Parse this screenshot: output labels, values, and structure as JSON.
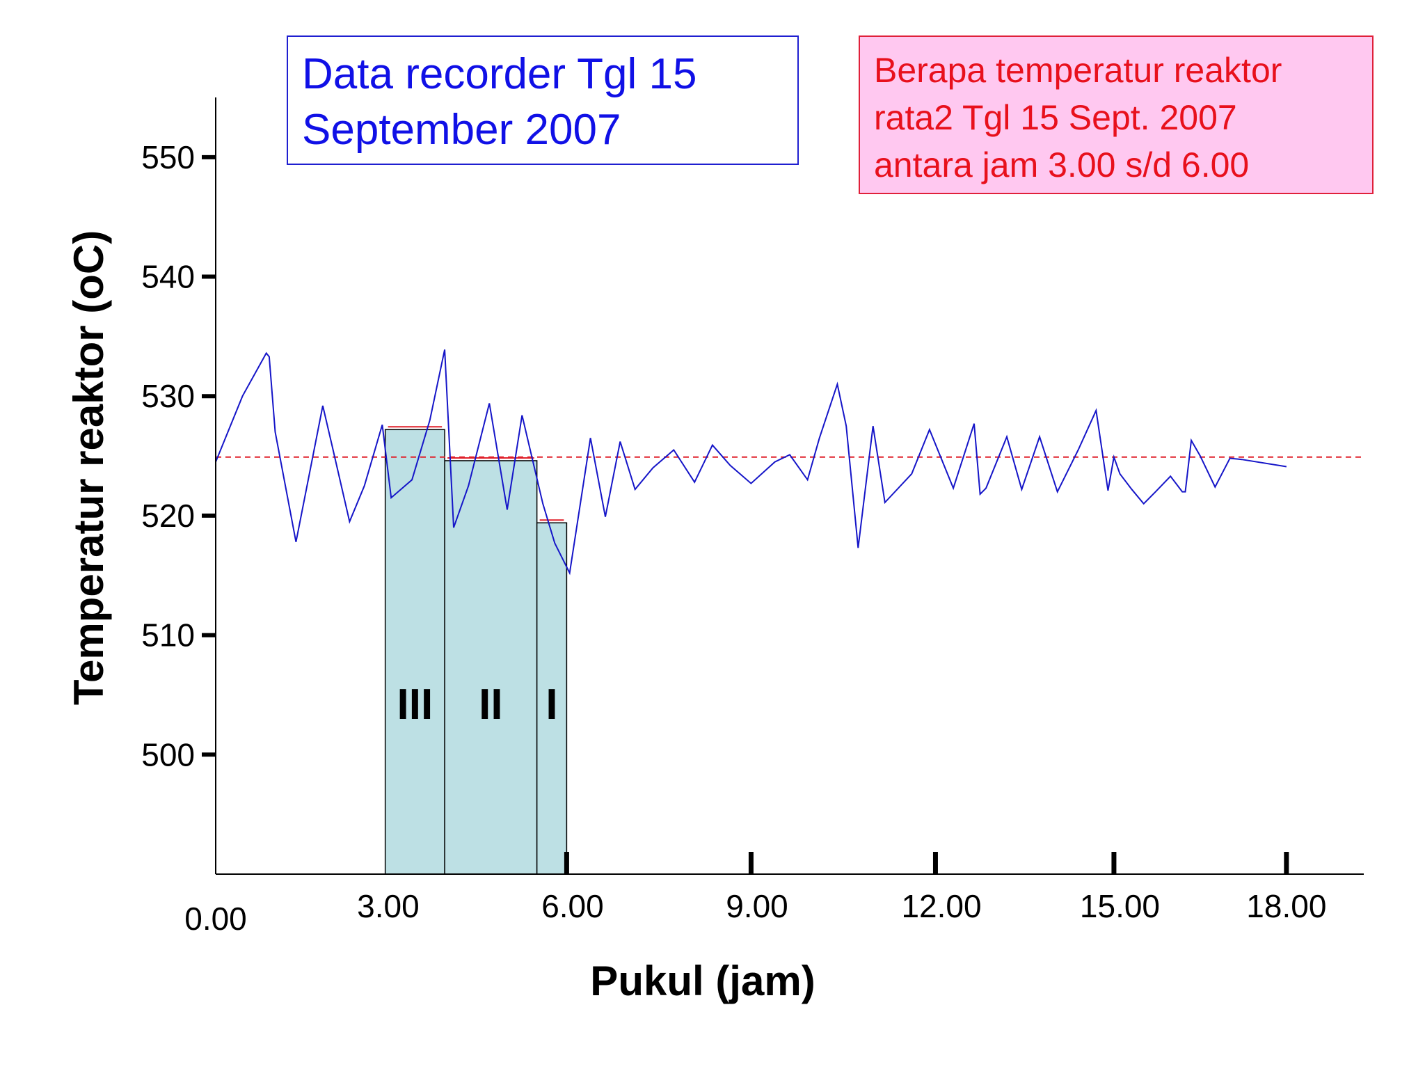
{
  "title_box": {
    "line1": "Data recorder Tgl 15",
    "line2": "September 2007"
  },
  "question_box": {
    "line1": "Berapa temperatur reaktor",
    "line2": "rata2  Tgl 15 Sept. 2007",
    "line3": "antara jam 3.00 s/d 6.00"
  },
  "colors": {
    "line": "#1515c8",
    "reference": "#e0202a",
    "bar_fill": "#bde0e4",
    "question_bg": "#ffc8f0"
  },
  "chart_data": {
    "type": "line",
    "title": "",
    "xlabel": "Pukul (jam)",
    "ylabel": "Temperatur reaktor (oC)",
    "xlim": [
      0,
      19.3
    ],
    "ylim": [
      490,
      555
    ],
    "x_ticks": [
      {
        "value": 0,
        "label": "0.00"
      },
      {
        "value": 2.9,
        "label": "3.00"
      },
      {
        "value": 6.0,
        "label": "6.00"
      },
      {
        "value": 9.1,
        "label": "9.00"
      },
      {
        "value": 12.2,
        "label": "12.00"
      },
      {
        "value": 15.2,
        "label": "15.00"
      },
      {
        "value": 18.0,
        "label": "18.00"
      }
    ],
    "x_tick_marks": [
      5.9,
      9.0,
      12.1,
      15.1,
      18.0
    ],
    "y_ticks": [
      {
        "value": 500,
        "label": "500"
      },
      {
        "value": 510,
        "label": "510"
      },
      {
        "value": 520,
        "label": "520"
      },
      {
        "value": 530,
        "label": "530"
      },
      {
        "value": 540,
        "label": "540"
      },
      {
        "value": 550,
        "label": "550"
      }
    ],
    "reference_line": {
      "y": 524.9,
      "style": "dashed"
    },
    "series": [
      {
        "x": [
          0,
          0.45,
          0.85,
          0.9,
          1.0,
          1.35,
          1.8,
          1.95,
          2.25,
          2.5,
          2.8,
          2.95,
          3.3,
          3.6,
          3.85,
          4.0,
          4.25,
          4.6,
          4.9,
          5.15,
          5.5,
          5.7,
          5.95,
          6.3,
          6.55,
          6.8,
          7.05,
          7.35,
          7.7,
          8.05,
          8.35,
          8.65,
          9.0,
          9.4,
          9.65,
          9.95,
          10.15,
          10.45,
          10.6,
          10.8,
          11.05,
          11.25,
          11.7,
          12.0,
          12.4,
          12.75,
          12.85,
          12.95,
          13.3,
          13.55,
          13.85,
          14.15,
          14.5,
          14.8,
          15.0,
          15.1,
          15.2,
          15.4,
          15.6,
          15.8,
          16.05,
          16.25,
          16.3,
          16.4,
          16.55,
          16.8,
          17.05,
          17.25,
          18.0
        ],
        "y": [
          524.5,
          530,
          533.6,
          533.3,
          527,
          517.8,
          529.2,
          526,
          519.5,
          522.5,
          527.6,
          521.5,
          523,
          528,
          533.9,
          519,
          522.5,
          529.4,
          520.5,
          528.4,
          521,
          517.7,
          515.2,
          526.5,
          519.9,
          526.2,
          522.2,
          524,
          525.5,
          522.8,
          525.9,
          524.2,
          522.7,
          524.5,
          525.1,
          523,
          526.5,
          531,
          527.5,
          517.3,
          527.5,
          521.1,
          523.5,
          527.2,
          522.3,
          527.7,
          521.8,
          522.3,
          526.6,
          522.2,
          526.6,
          522,
          525.5,
          528.8,
          522.1,
          524.9,
          523.5,
          522.2,
          521,
          522,
          523.3,
          522,
          522,
          526.3,
          525,
          522.4,
          524.8,
          524.7,
          524.1
        ]
      }
    ],
    "bars": [
      {
        "label": "III",
        "x0": 2.85,
        "x1": 3.85,
        "value": 527.2
      },
      {
        "label": "II",
        "x0": 3.85,
        "x1": 5.4,
        "value": 524.6
      },
      {
        "label": "I",
        "x0": 5.4,
        "x1": 5.9,
        "value": 519.4
      }
    ]
  }
}
